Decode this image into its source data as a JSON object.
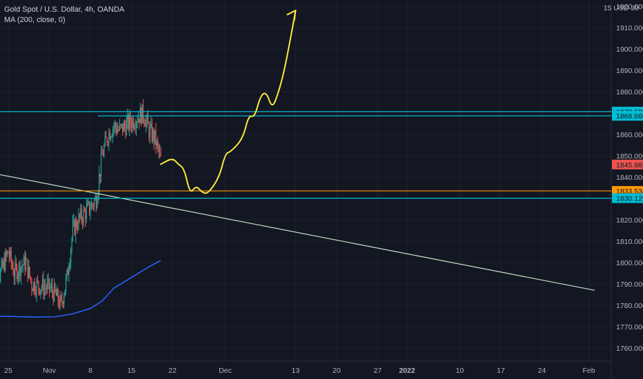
{
  "legend": {
    "symbol": "Gold Spot / U.S. Dollar, 4h, OANDA",
    "indicator": "MA (200, close, 0)"
  },
  "currency_label": "15 USD 30",
  "colors": {
    "background": "#131722",
    "grid": "#1e222d",
    "candle_up": "#26a69a",
    "candle_down": "#ef5350",
    "ma": "#2962ff",
    "drawing": "#ffeb3b",
    "cyan_level": "#00bcd4",
    "orange_level": "#ff9800",
    "trendline": "#c8e6c9"
  },
  "chart_data": {
    "type": "candlestick",
    "title": "Gold Spot / U.S. Dollar, 4h, OANDA",
    "y_axis": {
      "ylim": [
        1755,
        1925
      ],
      "ticks": [
        1760,
        1770,
        1780,
        1790,
        1800,
        1810,
        1820,
        1830,
        1840,
        1850,
        1860,
        1870,
        1880,
        1890,
        1900,
        1910,
        1920
      ],
      "tick_labels": [
        "1760.000",
        "1770.000",
        "1780.000",
        "1790.000",
        "1800.000",
        "1810.000",
        "1820.000",
        "1830.000",
        "1840.000",
        "1850.000",
        "1860.000",
        "1870.000",
        "1880.000",
        "1890.000",
        "1900.000",
        "1910.000",
        "1920.000"
      ]
    },
    "x_axis": {
      "tick_labels": [
        {
          "label": "25",
          "date": "2021-10-25",
          "bold": false
        },
        {
          "label": "Nov",
          "date": "2021-11-01",
          "bold": false
        },
        {
          "label": "8",
          "date": "2021-11-08",
          "bold": false
        },
        {
          "label": "15",
          "date": "2021-11-15",
          "bold": false
        },
        {
          "label": "22",
          "date": "2021-11-22",
          "bold": false
        },
        {
          "label": "Dec",
          "date": "2021-12-01",
          "bold": false
        },
        {
          "label": "13",
          "date": "2021-12-13",
          "bold": false
        },
        {
          "label": "20",
          "date": "2021-12-20",
          "bold": false
        },
        {
          "label": "27",
          "date": "2021-12-27",
          "bold": false
        },
        {
          "label": "2022",
          "date": "2022-01-01",
          "bold": true
        },
        {
          "label": "10",
          "date": "2022-01-10",
          "bold": false
        },
        {
          "label": "17",
          "date": "2022-01-17",
          "bold": false
        },
        {
          "label": "24",
          "date": "2022-01-24",
          "bold": false
        },
        {
          "label": "Feb",
          "date": "2022-02-01",
          "bold": false
        }
      ]
    },
    "price_path": [
      [
        "2021-10-22",
        1800
      ],
      [
        "2021-10-23",
        1790
      ],
      [
        "2021-10-25",
        1805
      ],
      [
        "2021-10-26",
        1795
      ],
      [
        "2021-10-27",
        1798
      ],
      [
        "2021-10-28",
        1800
      ],
      [
        "2021-10-29",
        1790
      ],
      [
        "2021-11-01",
        1788
      ],
      [
        "2021-11-02",
        1785
      ],
      [
        "2021-11-03",
        1780
      ],
      [
        "2021-11-04",
        1793
      ],
      [
        "2021-11-05",
        1815
      ],
      [
        "2021-11-06",
        1820
      ],
      [
        "2021-11-08",
        1826
      ],
      [
        "2021-11-09",
        1830
      ],
      [
        "2021-11-10",
        1850
      ],
      [
        "2021-11-11",
        1860
      ],
      [
        "2021-11-12",
        1864
      ],
      [
        "2021-11-13",
        1862
      ],
      [
        "2021-11-15",
        1866
      ],
      [
        "2021-11-16",
        1868
      ],
      [
        "2021-11-17",
        1870
      ],
      [
        "2021-11-18",
        1862
      ],
      [
        "2021-11-19",
        1858
      ],
      [
        "2021-11-20",
        1848
      ]
    ],
    "ma200": [
      [
        "2021-10-22",
        1775
      ],
      [
        "2021-10-25",
        1774.8
      ],
      [
        "2021-10-29",
        1774.5
      ],
      [
        "2021-11-02",
        1774.6
      ],
      [
        "2021-11-05",
        1776
      ],
      [
        "2021-11-08",
        1778.5
      ],
      [
        "2021-11-10",
        1782
      ],
      [
        "2021-11-12",
        1788
      ],
      [
        "2021-11-15",
        1793
      ],
      [
        "2021-11-18",
        1798
      ],
      [
        "2021-11-20",
        1801
      ]
    ],
    "last_price": 1845.885,
    "horizontal_levels": [
      {
        "price": 1870.682,
        "label": "1870.682",
        "color": "#00bcd4"
      },
      {
        "price": 1868.66,
        "label": "1868.660",
        "color": "#00bcd4"
      },
      {
        "price": 1833.534,
        "label": "1833.534",
        "color": "#ff9800"
      },
      {
        "price": 1830.125,
        "label": "1830.125",
        "color": "#00bcd4"
      },
      {
        "price": 1845.885,
        "label": "1845.885",
        "color": "#ef5350"
      }
    ],
    "trendline": {
      "from": [
        "2021-10-22",
        1842
      ],
      "to": [
        "2022-02-02",
        1787
      ],
      "color": "#c8e6c9"
    },
    "projection_path": [
      [
        "2021-11-20",
        1846
      ],
      [
        "2021-11-22",
        1849
      ],
      [
        "2021-11-23",
        1846
      ],
      [
        "2021-11-24",
        1844
      ],
      [
        "2021-11-25",
        1832
      ],
      [
        "2021-11-26",
        1836
      ],
      [
        "2021-11-27",
        1833
      ],
      [
        "2021-11-28",
        1832
      ],
      [
        "2021-11-30",
        1840
      ],
      [
        "2021-12-01",
        1851
      ],
      [
        "2021-12-02",
        1852
      ],
      [
        "2021-12-04",
        1858
      ],
      [
        "2021-12-05",
        1869
      ],
      [
        "2021-12-06",
        1868
      ],
      [
        "2021-12-07",
        1878
      ],
      [
        "2021-12-08",
        1880
      ],
      [
        "2021-12-09",
        1872
      ],
      [
        "2021-12-10",
        1879
      ],
      [
        "2021-12-11",
        1889
      ],
      [
        "2021-12-12",
        1903
      ],
      [
        "2021-12-13",
        1918
      ]
    ]
  }
}
